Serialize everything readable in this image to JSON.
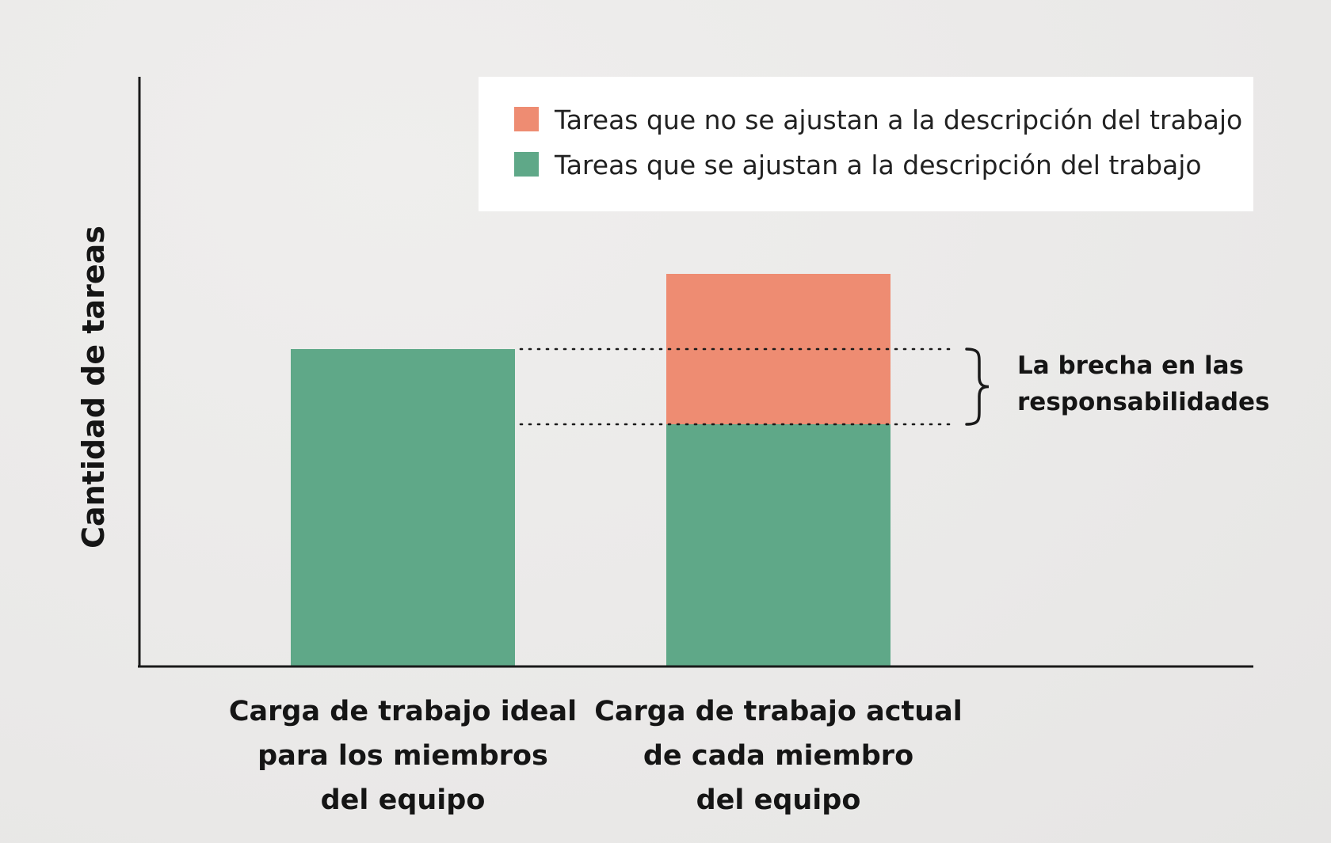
{
  "chart_data": {
    "type": "bar",
    "stacked": true,
    "title": "",
    "xlabel": "",
    "ylabel": "Cantidad de tareas",
    "y_ticks_shown": false,
    "grid": false,
    "ylim": [
      0,
      10
    ],
    "legend_position": "top-right",
    "categories": [
      [
        "Carga de trabajo ideal",
        "para los miembros",
        "del equipo"
      ],
      [
        "Carga de trabajo actual",
        "de cada miembro",
        "del equipo"
      ]
    ],
    "series": [
      {
        "name": "Tareas que se ajustan a la descripción del trabajo",
        "color": "#5fa888",
        "values": [
          8,
          6.1
        ]
      },
      {
        "name": "Tareas que no se ajustan a la descripción del trabajo",
        "color": "#ee8c72",
        "values": [
          0,
          3.8
        ]
      }
    ],
    "legend_order": [
      1,
      0
    ],
    "annotations": [
      {
        "text": [
          "La brecha en las",
          "responsabilidades"
        ],
        "from_value": 6.1,
        "to_value": 8,
        "style": "dotted reference lines with brace"
      }
    ]
  }
}
